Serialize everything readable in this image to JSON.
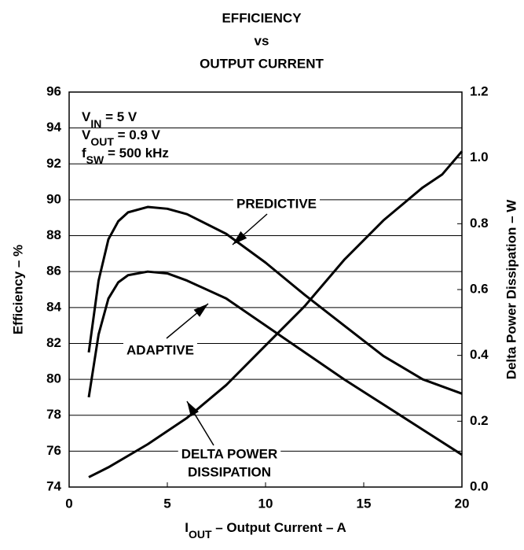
{
  "chart_data": {
    "type": "line",
    "title": [
      "EFFICIENCY",
      "vs",
      "OUTPUT CURRENT"
    ],
    "x_label": [
      "I",
      "OUT",
      " – Output Current – A"
    ],
    "y_label": "Efficiency – %",
    "y2_label": "Delta Power Dissipation – W",
    "annotations": [
      [
        "V",
        "IN",
        " = 5 V"
      ],
      [
        "V",
        "OUT",
        " = 0.9 V"
      ],
      [
        "f",
        "SW",
        " = 500 kHz"
      ]
    ],
    "curve_labels": [
      "PREDICTIVE",
      "ADAPTIVE",
      "DELTA POWER",
      "DISSIPATION"
    ],
    "xlim": [
      0,
      20
    ],
    "xticks": [
      0,
      5,
      10,
      15,
      20
    ],
    "ylim": [
      74,
      96
    ],
    "yticks": [
      74,
      76,
      78,
      80,
      82,
      84,
      86,
      88,
      90,
      92,
      94,
      96
    ],
    "y2lim": [
      0,
      1.2
    ],
    "y2ticks": [
      {
        "value": 0,
        "label": "0.0"
      },
      0.2,
      0.4,
      0.6,
      0.8,
      {
        "value": 1,
        "label": "1.0"
      },
      1.2
    ],
    "grid": true,
    "series": [
      {
        "name": "PREDICTIVE",
        "color": "#000000",
        "x": [
          1,
          1.5,
          2,
          2.5,
          3,
          4,
          5,
          6,
          8,
          10,
          12,
          14,
          16,
          18,
          20
        ],
        "values": [
          81.5,
          85.5,
          87.8,
          88.8,
          89.3,
          89.6,
          89.5,
          89.2,
          88.1,
          86.5,
          84.7,
          83,
          81.3,
          80,
          79.2
        ]
      },
      {
        "name": "ADAPTIVE",
        "color": "#000000",
        "x": [
          1,
          1.5,
          2,
          2.5,
          3,
          4,
          5,
          6,
          8,
          10,
          12,
          14,
          16,
          18,
          20
        ],
        "values": [
          79,
          82.5,
          84.5,
          85.4,
          85.8,
          86,
          85.9,
          85.5,
          84.5,
          83,
          81.5,
          80,
          78.6,
          77.2,
          75.8
        ]
      },
      {
        "name": "DELTA POWER DISSIPATION",
        "color": "#000000",
        "axis": "y2",
        "x": [
          1,
          2,
          4,
          6,
          8,
          10,
          12,
          14,
          16,
          18,
          19,
          20
        ],
        "values": [
          0.03,
          0.06,
          0.13,
          0.21,
          0.31,
          0.43,
          0.55,
          0.69,
          0.81,
          0.91,
          0.95,
          1.02
        ]
      }
    ]
  }
}
